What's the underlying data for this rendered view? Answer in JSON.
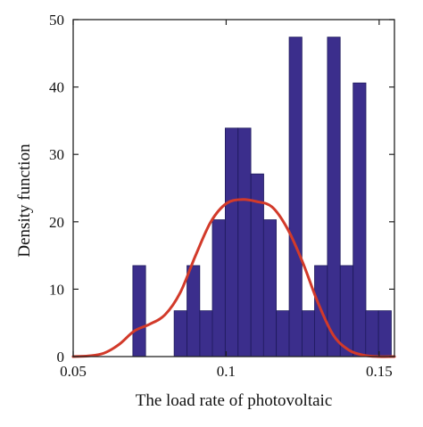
{
  "chart_data": {
    "type": "bar",
    "xlabel": "The load rate of photovoltaic",
    "ylabel": "Density function",
    "xlim": [
      0.05,
      0.155
    ],
    "ylim": [
      0,
      50
    ],
    "xticks": [
      0.05,
      0.1,
      0.15
    ],
    "xtick_labels": [
      "0.05",
      "0.1",
      "0.15"
    ],
    "yticks": [
      0,
      10,
      20,
      30,
      40,
      50
    ],
    "ytick_labels": [
      "0",
      "10",
      "20",
      "30",
      "40",
      "50"
    ],
    "grid": false,
    "legend": "none",
    "bin_width": 0.00417,
    "bars": [
      {
        "x_start": 0.0695,
        "density": 13.5
      },
      {
        "x_start": 0.083,
        "density": 6.8
      },
      {
        "x_start": 0.0872,
        "density": 13.5
      },
      {
        "x_start": 0.0914,
        "density": 6.8
      },
      {
        "x_start": 0.0955,
        "density": 20.3
      },
      {
        "x_start": 0.0997,
        "density": 33.9
      },
      {
        "x_start": 0.1039,
        "density": 33.9
      },
      {
        "x_start": 0.1081,
        "density": 27.1
      },
      {
        "x_start": 0.1122,
        "density": 20.3
      },
      {
        "x_start": 0.1164,
        "density": 6.8
      },
      {
        "x_start": 0.1206,
        "density": 47.4
      },
      {
        "x_start": 0.1248,
        "density": 6.8
      },
      {
        "x_start": 0.1289,
        "density": 13.5
      },
      {
        "x_start": 0.1331,
        "density": 47.4
      },
      {
        "x_start": 0.1373,
        "density": 13.5
      },
      {
        "x_start": 0.1415,
        "density": 40.6
      },
      {
        "x_start": 0.1456,
        "density": 6.8
      },
      {
        "x_start": 0.1498,
        "density": 6.8
      }
    ],
    "kde": {
      "x": [
        0.05,
        0.055,
        0.06,
        0.065,
        0.07,
        0.075,
        0.08,
        0.085,
        0.09,
        0.095,
        0.1,
        0.105,
        0.11,
        0.115,
        0.12,
        0.125,
        0.13,
        0.135,
        0.14,
        0.145,
        0.15,
        0.155
      ],
      "y": [
        0,
        0.1,
        0.5,
        1.8,
        3.8,
        4.8,
        6.2,
        9.5,
        15.0,
        20.0,
        22.7,
        23.3,
        23.0,
        22.2,
        19.0,
        14.0,
        8.0,
        3.2,
        1.0,
        0.2,
        0,
        0
      ]
    },
    "colors": {
      "bar_fill": "#3b2e8c",
      "bar_stroke": "#1e1a5c",
      "kde_line": "#d23a2a",
      "axis": "#222222"
    }
  }
}
